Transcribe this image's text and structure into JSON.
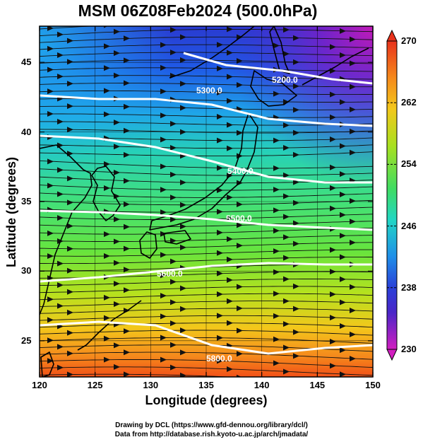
{
  "title": "MSM 06Z08Feb2024 (500.0hPa)",
  "axes": {
    "xlabel": "Longitude (degrees)",
    "ylabel": "Latitude  (degrees)",
    "xticks": [
      "120",
      "125",
      "130",
      "135",
      "140",
      "145",
      "150"
    ],
    "yticks": [
      "45",
      "40",
      "35",
      "30",
      "25"
    ]
  },
  "colorbar": {
    "ticks": [
      "270",
      "262",
      "254",
      "246",
      "238",
      "230"
    ]
  },
  "contours": [
    {
      "label": "5200.0"
    },
    {
      "label": "5300.0"
    },
    {
      "label": "5400.0"
    },
    {
      "label": "5500.0"
    },
    {
      "label": "5600.0"
    },
    {
      "label": "5800.0"
    }
  ],
  "credits": [
    "Drawing by DCL (https://www.gfd-dennou.org/library/dcl/)",
    "Data from http://database.rish.kyoto-u.ac.jp/arch/jmadata/"
  ],
  "chart_data": {
    "type": "heatmap",
    "title": "MSM 06Z08Feb2024 (500.0hPa)",
    "xlabel": "Longitude (degrees)",
    "ylabel": "Latitude  (degrees)",
    "xlim": [
      120,
      150
    ],
    "ylim": [
      22.4,
      47.6
    ],
    "colorbar_range": [
      230,
      270
    ],
    "colorbar_ticks": [
      270,
      262,
      254,
      246,
      238,
      230
    ],
    "contour_levels": [
      5200.0,
      5300.0,
      5400.0,
      5500.0,
      5600.0,
      5800.0
    ],
    "grid": true,
    "overlays": [
      "temperature shading",
      "geopotential height contours (white)",
      "wind streamlines with arrows",
      "coastlines"
    ]
  }
}
